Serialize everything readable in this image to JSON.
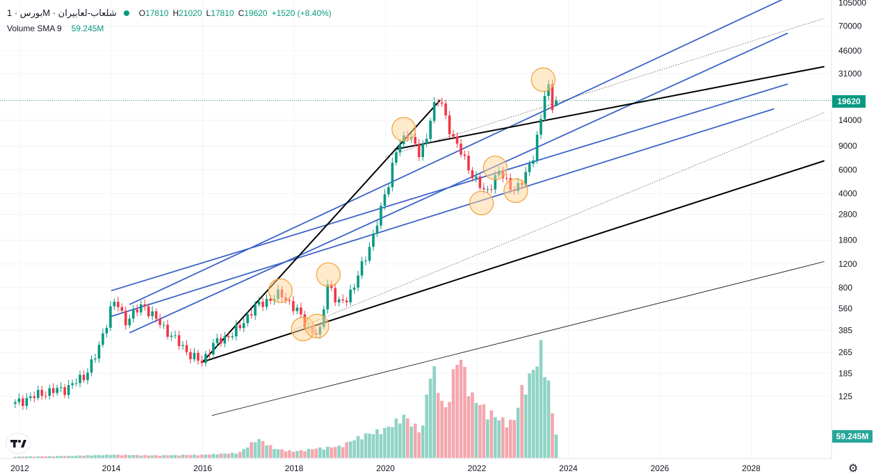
{
  "legend": {
    "symbol": "بورس · 1M · شلعاب-لعابیران",
    "ohlc": [
      {
        "label": "O",
        "value": "17810"
      },
      {
        "label": "H",
        "value": "21020"
      },
      {
        "label": "L",
        "value": "17810"
      },
      {
        "label": "C",
        "value": "19620"
      }
    ],
    "change": "+1520 (+8.40%)",
    "volume_label": "Volume SMA 9",
    "volume_value": "59.245M"
  },
  "price_badge": "19620",
  "volume_badge": "59.245M",
  "top_edge_label": "105000",
  "icons": {
    "logo": "tradingview-logo-icon",
    "settings": "gear-icon"
  },
  "colors": {
    "up": "#089981",
    "down": "#f23645",
    "vol_up": "#8fd3c5",
    "vol_down": "#f4a7ad",
    "channel_blue": "#3a62c8",
    "trend_black": "#000000",
    "highlight_fill": "#ffd59a",
    "highlight_stroke": "#f0a030",
    "price_line": "#089981"
  },
  "chart_data": {
    "type": "candlestick",
    "interval": "1M",
    "y_scale": "log",
    "y_ticks": [
      125,
      185,
      265,
      385,
      560,
      800,
      1200,
      1800,
      2800,
      4000,
      6000,
      9000,
      14000,
      31000,
      46000,
      70000
    ],
    "x_ticks": [
      "2012",
      "2014",
      "2016",
      "2018",
      "2020",
      "2022",
      "2024",
      "2026",
      "2028"
    ],
    "last": {
      "open": 17810,
      "high": 21020,
      "low": 17810,
      "close": 19620,
      "change": 1520,
      "change_pct": 8.4
    },
    "close_path": [
      [
        2011.9,
        110
      ],
      [
        2012.2,
        122
      ],
      [
        2012.6,
        135
      ],
      [
        2013.0,
        142
      ],
      [
        2013.4,
        175
      ],
      [
        2013.7,
        265
      ],
      [
        2014.0,
        580
      ],
      [
        2014.1,
        640
      ],
      [
        2014.3,
        450
      ],
      [
        2014.5,
        520
      ],
      [
        2014.7,
        600
      ],
      [
        2014.9,
        500
      ],
      [
        2015.1,
        420
      ],
      [
        2015.4,
        330
      ],
      [
        2015.7,
        260
      ],
      [
        2015.9,
        230
      ],
      [
        2016.0,
        225
      ],
      [
        2016.2,
        300
      ],
      [
        2016.5,
        340
      ],
      [
        2016.8,
        400
      ],
      [
        2017.1,
        560
      ],
      [
        2017.4,
        640
      ],
      [
        2017.7,
        720
      ],
      [
        2017.9,
        620
      ],
      [
        2018.1,
        520
      ],
      [
        2018.3,
        400
      ],
      [
        2018.5,
        360
      ],
      [
        2018.6,
        380
      ],
      [
        2018.7,
        900
      ],
      [
        2018.8,
        800
      ],
      [
        2018.95,
        600
      ],
      [
        2019.1,
        640
      ],
      [
        2019.3,
        800
      ],
      [
        2019.5,
        1200
      ],
      [
        2019.7,
        1800
      ],
      [
        2019.9,
        3000
      ],
      [
        2020.0,
        4200
      ],
      [
        2020.1,
        5200
      ],
      [
        2020.2,
        8000
      ],
      [
        2020.35,
        9500
      ],
      [
        2020.5,
        11500
      ],
      [
        2020.6,
        10000
      ],
      [
        2020.75,
        7500
      ],
      [
        2020.9,
        10500
      ],
      [
        2021.0,
        16000
      ],
      [
        2021.1,
        19000
      ],
      [
        2021.2,
        20000
      ],
      [
        2021.3,
        15000
      ],
      [
        2021.5,
        10000
      ],
      [
        2021.7,
        7500
      ],
      [
        2021.9,
        5500
      ],
      [
        2022.05,
        4600
      ],
      [
        2022.2,
        4000
      ],
      [
        2022.35,
        5000
      ],
      [
        2022.5,
        5800
      ],
      [
        2022.65,
        4900
      ],
      [
        2022.8,
        4300
      ],
      [
        2022.95,
        4500
      ],
      [
        2023.1,
        6000
      ],
      [
        2023.25,
        8000
      ],
      [
        2023.4,
        14000
      ],
      [
        2023.5,
        24000
      ],
      [
        2023.6,
        25000
      ],
      [
        2023.65,
        18000
      ],
      [
        2023.72,
        17810
      ],
      [
        2023.8,
        19620
      ]
    ],
    "volume_profile": [
      [
        2011.9,
        2
      ],
      [
        2013.0,
        3
      ],
      [
        2014.0,
        5
      ],
      [
        2015.0,
        4
      ],
      [
        2016.0,
        5
      ],
      [
        2016.8,
        8
      ],
      [
        2017.2,
        30
      ],
      [
        2017.6,
        14
      ],
      [
        2018.0,
        10
      ],
      [
        2018.5,
        15
      ],
      [
        2019.0,
        18
      ],
      [
        2019.5,
        35
      ],
      [
        2020.0,
        45
      ],
      [
        2020.4,
        65
      ],
      [
        2020.8,
        40
      ],
      [
        2021.0,
        150
      ],
      [
        2021.3,
        70
      ],
      [
        2021.6,
        165
      ],
      [
        2021.9,
        95
      ],
      [
        2022.2,
        75
      ],
      [
        2022.5,
        60
      ],
      [
        2022.8,
        55
      ],
      [
        2023.0,
        110
      ],
      [
        2023.2,
        130
      ],
      [
        2023.4,
        170
      ],
      [
        2023.55,
        125
      ],
      [
        2023.7,
        40
      ]
    ],
    "highlights": [
      [
        2017.7,
        760
      ],
      [
        2018.2,
        395
      ],
      [
        2018.5,
        415
      ],
      [
        2018.75,
        1000
      ],
      [
        2020.4,
        12000
      ],
      [
        2022.1,
        3400
      ],
      [
        2022.4,
        6200
      ],
      [
        2022.85,
        4200
      ],
      [
        2023.45,
        28000
      ]
    ],
    "lines": [
      {
        "style": "blue",
        "from": [
          2014.0,
          760
        ],
        "to": [
          2028.8,
          26000
        ]
      },
      {
        "style": "blue",
        "from": [
          2014.0,
          490
        ],
        "to": [
          2028.5,
          17000
        ]
      },
      {
        "style": "blue",
        "from": [
          2014.4,
          600
        ],
        "to": [
          2028.8,
          115000
        ]
      },
      {
        "style": "blue",
        "from": [
          2014.4,
          370
        ],
        "to": [
          2028.8,
          62000
        ]
      },
      {
        "style": "black-bold",
        "from": [
          2016.0,
          225
        ],
        "to": [
          2021.2,
          19800
        ]
      },
      {
        "style": "black-bold",
        "from": [
          2016.0,
          225
        ],
        "to": [
          2029.6,
          7000
        ]
      },
      {
        "style": "black-bold",
        "from": [
          2020.2,
          8500
        ],
        "to": [
          2029.6,
          35000
        ]
      },
      {
        "style": "black-thin",
        "from": [
          2016.2,
          90
        ],
        "to": [
          2029.6,
          1250
        ]
      },
      {
        "style": "dotted",
        "from": [
          2018.0,
          390
        ],
        "to": [
          2029.6,
          16000
        ]
      },
      {
        "style": "dotted",
        "from": [
          2020.0,
          7500
        ],
        "to": [
          2029.6,
          80000
        ]
      }
    ]
  }
}
